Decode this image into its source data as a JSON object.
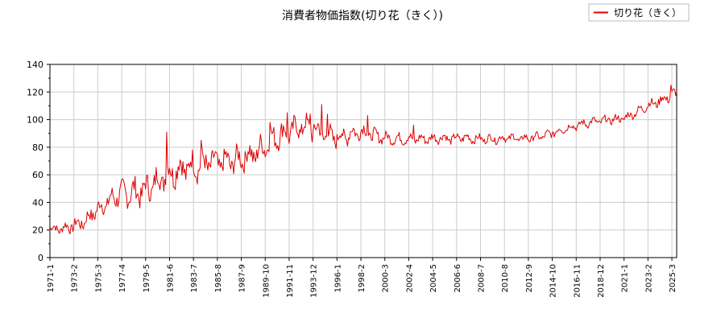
{
  "chart_data": {
    "type": "line",
    "title": "消費者物価指数(切り花（きく）)",
    "xlabel": "",
    "ylabel": "",
    "ylim": [
      0,
      140
    ],
    "yticks": [
      0,
      20,
      40,
      60,
      80,
      100,
      120,
      140
    ],
    "xlim": [
      "1971-1",
      "2025-8"
    ],
    "xtick_labels": [
      "1971-1",
      "1973-2",
      "1975-3",
      "1977-4",
      "1979-5",
      "1981-6",
      "1983-7",
      "1985-8",
      "1987-9",
      "1989-10",
      "1991-11",
      "1993-12",
      "1996-1",
      "1998-2",
      "2000-3",
      "2002-4",
      "2004-5",
      "2006-6",
      "2008-7",
      "2010-8",
      "2012-9",
      "2014-10",
      "2016-11",
      "2018-12",
      "2021-1",
      "2023-2",
      "2025-3"
    ],
    "grid": true,
    "legend": "top-right",
    "series": [
      {
        "name": "切り花（きく）",
        "color": "#dd0000",
        "trend_anchors": [
          [
            "1971-1",
            21
          ],
          [
            "1972-1",
            21
          ],
          [
            "1973-1",
            23
          ],
          [
            "1974-1",
            26
          ],
          [
            "1975-1",
            34
          ],
          [
            "1976-1",
            40
          ],
          [
            "1977-1",
            46
          ],
          [
            "1978-1",
            47
          ],
          [
            "1979-1",
            48
          ],
          [
            "1980-1",
            53
          ],
          [
            "1981-1",
            60
          ],
          [
            "1982-1",
            64
          ],
          [
            "1983-1",
            66
          ],
          [
            "1984-1",
            67
          ],
          [
            "1985-1",
            69
          ],
          [
            "1986-1",
            69
          ],
          [
            "1987-1",
            70
          ],
          [
            "1988-1",
            73
          ],
          [
            "1989-1",
            76
          ],
          [
            "1990-1",
            83
          ],
          [
            "1991-1",
            89
          ],
          [
            "1992-1",
            92
          ],
          [
            "1993-1",
            95
          ],
          [
            "1994-1",
            93
          ],
          [
            "1995-1",
            89
          ],
          [
            "1996-1",
            87
          ],
          [
            "1997-1",
            89
          ],
          [
            "1998-1",
            92
          ],
          [
            "1999-1",
            89
          ],
          [
            "2000-1",
            87
          ],
          [
            "2001-1",
            86
          ],
          [
            "2002-1",
            86
          ],
          [
            "2003-1",
            86
          ],
          [
            "2004-1",
            86
          ],
          [
            "2005-1",
            87
          ],
          [
            "2006-1",
            86
          ],
          [
            "2007-1",
            87
          ],
          [
            "2008-1",
            86
          ],
          [
            "2009-1",
            86
          ],
          [
            "2010-1",
            86
          ],
          [
            "2011-1",
            87
          ],
          [
            "2012-1",
            86
          ],
          [
            "2013-1",
            87
          ],
          [
            "2014-1",
            88
          ],
          [
            "2015-1",
            91
          ],
          [
            "2016-1",
            94
          ],
          [
            "2017-1",
            96
          ],
          [
            "2018-1",
            98
          ],
          [
            "2019-1",
            99
          ],
          [
            "2020-1",
            100
          ],
          [
            "2021-1",
            101
          ],
          [
            "2022-1",
            105
          ],
          [
            "2023-1",
            110
          ],
          [
            "2024-1",
            113
          ],
          [
            "2025-1",
            117
          ],
          [
            "2025-8",
            119
          ]
        ],
        "amplitude_anchors": [
          [
            "1971-1",
            3
          ],
          [
            "1975-1",
            6
          ],
          [
            "1978-1",
            9
          ],
          [
            "1982-1",
            11
          ],
          [
            "1986-1",
            9
          ],
          [
            "1990-1",
            9
          ],
          [
            "1994-1",
            8
          ],
          [
            "1998-1",
            6
          ],
          [
            "2000-1",
            4
          ],
          [
            "2010-1",
            3
          ],
          [
            "2016-1",
            3
          ],
          [
            "2022-1",
            3
          ],
          [
            "2025-8",
            4
          ]
        ],
        "annual_peak_value_above_trend": [
          [
            "1981-3",
            91
          ],
          [
            "1984-3",
            85
          ],
          [
            "1990-3",
            98
          ],
          [
            "1991-9",
            105
          ],
          [
            "1993-9",
            104
          ],
          [
            "1994-9",
            111
          ],
          [
            "1995-3",
            104
          ],
          [
            "1998-9",
            103
          ],
          [
            "2002-9",
            96
          ],
          [
            "2025-2",
            125
          ]
        ]
      }
    ]
  }
}
